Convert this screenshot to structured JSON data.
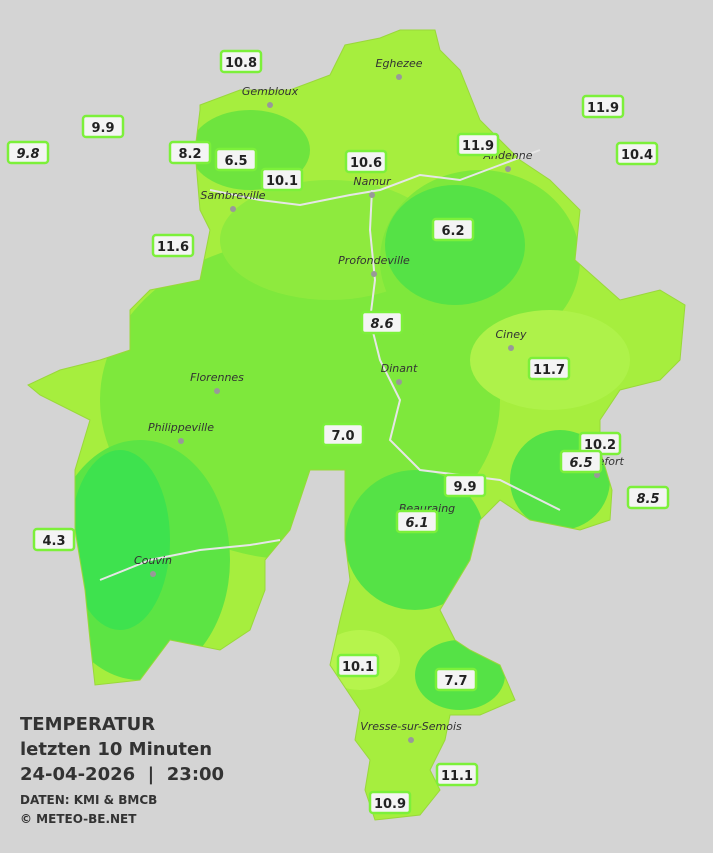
{
  "cities": [
    "Eghezee",
    "Gembloux",
    "Andenne",
    "Namur",
    "Sambreville",
    "Profondeville",
    "Ciney",
    "Dinant",
    "Florennes",
    "Philippeville",
    "Rochefort",
    "Beauraing",
    "Couvin",
    "Vresse-sur-Semois"
  ],
  "stations": [
    {
      "value": "10.8"
    },
    {
      "value": "9.9"
    },
    {
      "value": "9.8",
      "italic": true
    },
    {
      "value": "8.2"
    },
    {
      "value": "6.5"
    },
    {
      "value": "10.1"
    },
    {
      "value": "10.6"
    },
    {
      "value": "11.9"
    },
    {
      "value": "11.9"
    },
    {
      "value": "10.4"
    },
    {
      "value": "6.2"
    },
    {
      "value": "11.6"
    },
    {
      "value": "8.6",
      "italic": true
    },
    {
      "value": "11.7"
    },
    {
      "value": "7.0"
    },
    {
      "value": "10.2"
    },
    {
      "value": "6.5",
      "italic": true
    },
    {
      "value": "9.9"
    },
    {
      "value": "6.1",
      "italic": true
    },
    {
      "value": "8.5",
      "italic": true
    },
    {
      "value": "4.3"
    },
    {
      "value": "10.1"
    },
    {
      "value": "7.7"
    },
    {
      "value": "11.1"
    },
    {
      "value": "10.9"
    }
  ],
  "legend": {
    "title": "TEMPERATUR",
    "period": "letzten 10 Minuten",
    "datetime": "24-04-2026  |  23:00",
    "source": "DATEN: KMI & BMCB",
    "copyright": "© METEO-BE.NET"
  }
}
